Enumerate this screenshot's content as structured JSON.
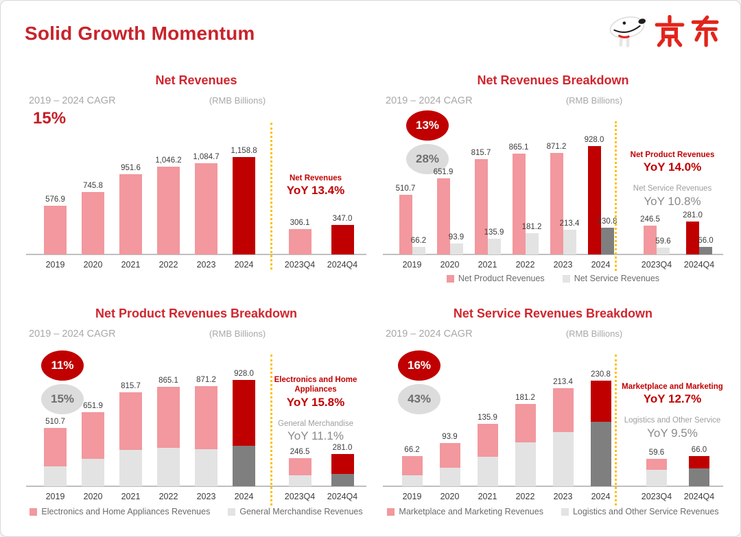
{
  "slide": {
    "title": "Solid Growth Momentum",
    "logo_text": "京东",
    "colors": {
      "title_red": "#C8232B",
      "accent_red": "#C00000",
      "bar_pink": "#F2989E",
      "bar_light_gray": "#E3E3E3",
      "bar_dark_gray": "#7F7F7F",
      "separator_yellow": "#FFC000",
      "muted_gray": "#A8A8A8",
      "logo_red": "#E1251B"
    }
  },
  "chart_data": [
    {
      "id": "net-revenues",
      "type": "bar",
      "title": "Net Revenues",
      "subtitle": "(RMB Billions)",
      "cagr_label": "2019 – 2024 CAGR",
      "cagr_badges": [
        {
          "text": "15%",
          "variant": "plain-red"
        }
      ],
      "categories": [
        "2019",
        "2020",
        "2021",
        "2022",
        "2023",
        "2024",
        "2023Q4",
        "2024Q4"
      ],
      "highlight": [
        false,
        false,
        false,
        false,
        false,
        true,
        false,
        true
      ],
      "series": [
        {
          "name": "Net Revenues",
          "values": [
            576.9,
            745.8,
            951.6,
            1046.2,
            1084.7,
            1158.8,
            306.1,
            347.0
          ],
          "labels": [
            "576.9",
            "745.8",
            "951.6",
            "1,046.2",
            "1,084.7",
            "1,158.8",
            "306.1",
            "347.0"
          ]
        }
      ],
      "annotations": [
        {
          "title": "Net Revenues",
          "yoy": "YoY 13.4%",
          "variant": "red"
        }
      ],
      "legend": [],
      "ylim": [
        0,
        1250
      ],
      "grid": false
    },
    {
      "id": "net-revenues-breakdown",
      "type": "grouped-bar",
      "title": "Net Revenues Breakdown",
      "subtitle": "(RMB Billions)",
      "cagr_label": "2019 – 2024 CAGR",
      "cagr_badges": [
        {
          "text": "13%",
          "variant": "red"
        },
        {
          "text": "28%",
          "variant": "gray"
        }
      ],
      "categories": [
        "2019",
        "2020",
        "2021",
        "2022",
        "2023",
        "2024",
        "2023Q4",
        "2024Q4"
      ],
      "highlight": [
        false,
        false,
        false,
        false,
        false,
        true,
        false,
        true
      ],
      "series": [
        {
          "name": "Net Product Revenues",
          "values": [
            510.7,
            651.9,
            815.7,
            865.1,
            871.2,
            928.0,
            246.5,
            281.0
          ],
          "labels": [
            "510.7",
            "651.9",
            "815.7",
            "865.1",
            "871.2",
            "928.0",
            "246.5",
            "281.0"
          ]
        },
        {
          "name": "Net Service Revenues",
          "values": [
            66.2,
            93.9,
            135.9,
            181.2,
            213.4,
            230.8,
            59.6,
            66.0
          ],
          "labels": [
            "66.2",
            "93.9",
            "135.9",
            "181.2",
            "213.4",
            "230.8",
            "59.6",
            "66.0"
          ]
        }
      ],
      "annotations": [
        {
          "title": "Net Product Revenues",
          "yoy": "YoY 14.0%",
          "variant": "red"
        },
        {
          "title": "Net Service Revenues",
          "yoy": "YoY 10.8%",
          "variant": "gray"
        }
      ],
      "legend": [
        "Net Product Revenues",
        "Net Service Revenues"
      ],
      "ylim": [
        0,
        1000
      ],
      "grid": false
    },
    {
      "id": "net-product-revenues-breakdown",
      "type": "stacked-bar",
      "title": "Net Product Revenues Breakdown",
      "subtitle": "(RMB Billions)",
      "cagr_label": "2019 – 2024 CAGR",
      "cagr_badges": [
        {
          "text": "11%",
          "variant": "red"
        },
        {
          "text": "15%",
          "variant": "gray"
        }
      ],
      "categories": [
        "2019",
        "2020",
        "2021",
        "2022",
        "2023",
        "2024",
        "2023Q4",
        "2024Q4"
      ],
      "highlight": [
        false,
        false,
        false,
        false,
        false,
        true,
        false,
        true
      ],
      "total_labels": [
        "510.7",
        "651.9",
        "815.7",
        "865.1",
        "871.2",
        "928.0",
        "246.5",
        "281.0"
      ],
      "series": [
        {
          "name": "Electronics and Home Appliances Revenues",
          "values": [
            335.0,
            410.0,
            500.0,
            532.0,
            550.0,
            574.0,
            150.4,
            174.1
          ]
        },
        {
          "name": "General Merchandise Revenues",
          "values": [
            175.7,
            241.9,
            315.7,
            333.1,
            321.2,
            354.0,
            96.1,
            106.9
          ]
        }
      ],
      "annotations": [
        {
          "title": "Electronics and Home Appliances",
          "yoy": "YoY 15.8%",
          "variant": "red"
        },
        {
          "title": "General Merchandise",
          "yoy": "YoY 11.1%",
          "variant": "gray"
        }
      ],
      "legend": [
        "Electronics and Home Appliances Revenues",
        "General Merchandise Revenues"
      ],
      "ylim": [
        0,
        1000
      ],
      "grid": false
    },
    {
      "id": "net-service-revenues-breakdown",
      "type": "stacked-bar",
      "title": "Net Service Revenues Breakdown",
      "subtitle": "(RMB Billions)",
      "cagr_label": "2019 – 2024 CAGR",
      "cagr_badges": [
        {
          "text": "16%",
          "variant": "red"
        },
        {
          "text": "43%",
          "variant": "gray"
        }
      ],
      "categories": [
        "2019",
        "2020",
        "2021",
        "2022",
        "2023",
        "2024",
        "2023Q4",
        "2024Q4"
      ],
      "highlight": [
        false,
        false,
        false,
        false,
        false,
        true,
        false,
        true
      ],
      "total_labels": [
        "66.2",
        "93.9",
        "135.9",
        "181.2",
        "213.4",
        "230.8",
        "59.6",
        "66.0"
      ],
      "series": [
        {
          "name": "Marketplace and Marketing Revenues",
          "values": [
            42.7,
            53.4,
            72.1,
            84.7,
            95.3,
            90.0,
            23.7,
            26.7
          ]
        },
        {
          "name": "Logistics and Other Service Revenues",
          "values": [
            23.5,
            40.5,
            63.8,
            96.5,
            118.1,
            140.8,
            35.9,
            39.3
          ]
        }
      ],
      "annotations": [
        {
          "title": "Marketplace and Marketing",
          "yoy": "YoY 12.7%",
          "variant": "red"
        },
        {
          "title": "Logistics and Other Service",
          "yoy": "YoY 9.5%",
          "variant": "gray"
        }
      ],
      "legend": [
        "Marketplace and Marketing Revenues",
        "Logistics and Other Service Revenues"
      ],
      "ylim": [
        0,
        250
      ],
      "grid": false
    }
  ]
}
